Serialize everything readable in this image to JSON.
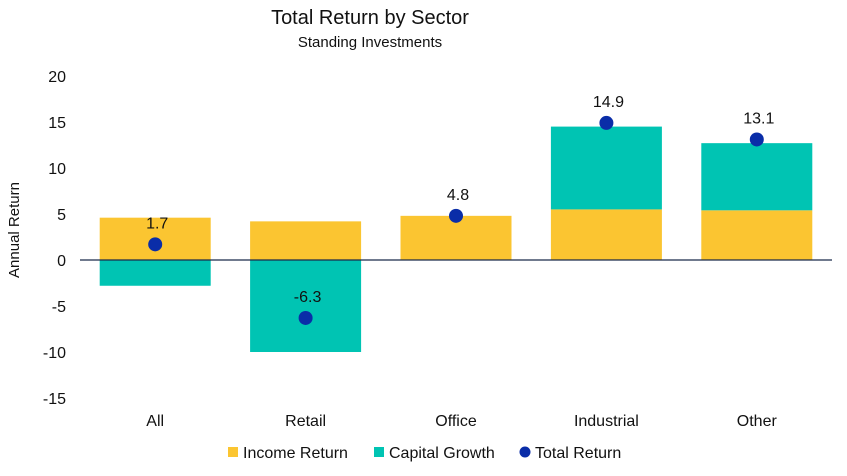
{
  "chart_data": {
    "type": "bar",
    "title": "Total Return by Sector",
    "subtitle": "Standing Investments",
    "xlabel": "",
    "ylabel": "Annual Return",
    "ylim": [
      -15,
      20
    ],
    "yticks": [
      20,
      15,
      10,
      5,
      0,
      -5,
      -10,
      -15
    ],
    "categories": [
      "All",
      "Retail",
      "Office",
      "Industrial",
      "Other"
    ],
    "series": [
      {
        "name": "Income Return",
        "kind": "bar",
        "color": "#FBC531",
        "values": [
          4.6,
          4.2,
          4.8,
          5.5,
          5.4
        ]
      },
      {
        "name": "Capital Growth",
        "kind": "bar",
        "color": "#00C4B3",
        "values": [
          -2.8,
          -10.0,
          0.0,
          9.0,
          7.3
        ]
      },
      {
        "name": "Total Return",
        "kind": "dot",
        "color": "#0A2DA8",
        "values": [
          1.7,
          -6.3,
          4.8,
          14.9,
          13.1
        ]
      }
    ],
    "data_labels": [
      "1.7",
      "-6.3",
      "4.8",
      "14.9",
      "13.1"
    ],
    "legend_position": "bottom",
    "grid": false
  }
}
